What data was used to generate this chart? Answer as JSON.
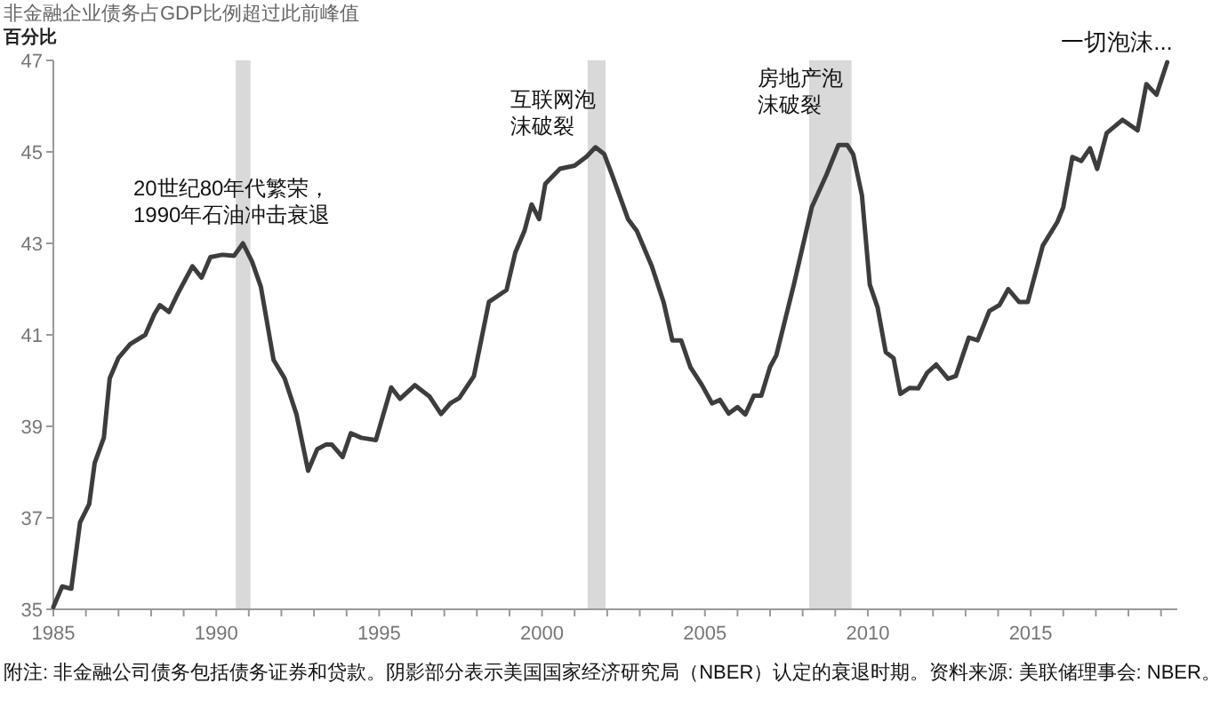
{
  "chart_data": {
    "type": "line",
    "title": "非金融企业债务占GDP比例超过此前峰值",
    "ylabel": "百分比",
    "xlim": [
      1985,
      2019.5
    ],
    "ylim": [
      35,
      47
    ],
    "xticks": [
      1985,
      {
        "value": 1986,
        "label": null
      },
      {
        "value": 1987,
        "label": null
      },
      {
        "value": 1988,
        "label": null
      },
      {
        "value": 1989,
        "label": null
      },
      1990,
      {
        "value": 1991,
        "label": null
      },
      {
        "value": 1992,
        "label": null
      },
      {
        "value": 1993,
        "label": null
      },
      {
        "value": 1994,
        "label": null
      },
      1995,
      {
        "value": 1996,
        "label": null
      },
      {
        "value": 1997,
        "label": null
      },
      {
        "value": 1998,
        "label": null
      },
      {
        "value": 1999,
        "label": null
      },
      2000,
      {
        "value": 2001,
        "label": null
      },
      {
        "value": 2002,
        "label": null
      },
      {
        "value": 2003,
        "label": null
      },
      {
        "value": 2004,
        "label": null
      },
      2005,
      {
        "value": 2006,
        "label": null
      },
      {
        "value": 2007,
        "label": null
      },
      {
        "value": 2008,
        "label": null
      },
      {
        "value": 2009,
        "label": null
      },
      2010,
      {
        "value": 2011,
        "label": null
      },
      {
        "value": 2012,
        "label": null
      },
      {
        "value": 2013,
        "label": null
      },
      {
        "value": 2014,
        "label": null
      },
      2015,
      {
        "value": 2016,
        "label": null
      },
      {
        "value": 2017,
        "label": null
      },
      {
        "value": 2018,
        "label": null
      },
      {
        "value": 2019,
        "label": null
      }
    ],
    "yticks": [
      35,
      37,
      39,
      41,
      43,
      45,
      47
    ],
    "grid": false,
    "marker": "none",
    "line_style": "solid",
    "bands": [
      {
        "axis": "x",
        "from": 1990.6,
        "to": 1991.05,
        "color": "#d9d9d9"
      },
      {
        "axis": "x",
        "from": 2001.4,
        "to": 2001.95,
        "color": "#d9d9d9"
      },
      {
        "axis": "x",
        "from": 2008.2,
        "to": 2009.5,
        "color": "#d9d9d9"
      }
    ],
    "annotations": [
      "20世纪80年代繁荣，1990年石油冲击衰退",
      "互联网泡沫破裂",
      "房地产泡沫破裂",
      "一切泡沫...",
      "附注: 非金融公司债务包括债务证券和贷款。阴影部分表示美国国家经济研究局（NBER）认定的衰退时期。资料来源: 美联储理事会: NBER。"
    ],
    "series": [
      {
        "color": "#3d3d3d",
        "x": [
          1985.0,
          1985.27,
          1985.55,
          1985.82,
          1986.1,
          1986.27,
          1986.55,
          1986.73,
          1987.0,
          1987.36,
          1987.82,
          1988.1,
          1988.27,
          1988.55,
          1988.82,
          1989.27,
          1989.55,
          1989.82,
          1990.18,
          1990.55,
          1990.82,
          1991.1,
          1991.37,
          1991.76,
          1992.1,
          1992.46,
          1992.82,
          1993.1,
          1993.36,
          1993.55,
          1993.88,
          1994.13,
          1994.45,
          1994.9,
          1995.37,
          1995.64,
          1996.1,
          1996.55,
          1996.9,
          1997.18,
          1997.46,
          1997.91,
          1998.37,
          1998.64,
          1998.91,
          1999.18,
          1999.46,
          1999.68,
          1999.91,
          2000.1,
          2000.55,
          2001.0,
          2001.37,
          2001.64,
          2001.91,
          2002.18,
          2002.64,
          2002.91,
          2003.37,
          2003.73,
          2004.0,
          2004.27,
          2004.55,
          2004.91,
          2005.22,
          2005.46,
          2005.73,
          2006.0,
          2006.24,
          2006.5,
          2006.73,
          2007.0,
          2007.19,
          2007.73,
          2008.28,
          2008.73,
          2009.1,
          2009.37,
          2009.55,
          2009.82,
          2010.06,
          2010.3,
          2010.55,
          2010.79,
          2011.0,
          2011.28,
          2011.55,
          2011.82,
          2012.1,
          2012.46,
          2012.7,
          2013.1,
          2013.37,
          2013.73,
          2014.04,
          2014.31,
          2014.64,
          2014.91,
          2015.37,
          2015.82,
          2016.0,
          2016.28,
          2016.55,
          2016.82,
          2017.04,
          2017.33,
          2017.82,
          2018.28,
          2018.55,
          2018.86,
          2019.19
        ],
        "values": [
          35.05,
          35.5,
          35.45,
          36.9,
          37.3,
          38.2,
          38.75,
          40.05,
          40.5,
          40.8,
          41.0,
          41.45,
          41.65,
          41.5,
          41.9,
          42.5,
          42.25,
          42.7,
          42.75,
          42.73,
          43.0,
          42.6,
          42.05,
          40.45,
          40.05,
          39.27,
          38.03,
          38.5,
          38.6,
          38.6,
          38.33,
          38.85,
          38.75,
          38.7,
          39.85,
          39.6,
          39.9,
          39.65,
          39.27,
          39.5,
          39.62,
          40.1,
          41.72,
          41.85,
          41.98,
          42.8,
          43.27,
          43.85,
          43.53,
          44.3,
          44.63,
          44.7,
          44.9,
          45.1,
          44.95,
          44.44,
          43.53,
          43.27,
          42.5,
          41.72,
          40.88,
          40.88,
          40.3,
          39.9,
          39.5,
          39.58,
          39.28,
          39.42,
          39.26,
          39.67,
          39.67,
          40.3,
          40.55,
          42.1,
          43.79,
          44.5,
          45.15,
          45.15,
          44.95,
          44.05,
          42.1,
          41.6,
          40.62,
          40.49,
          39.71,
          39.84,
          39.83,
          40.17,
          40.35,
          40.04,
          40.1,
          40.94,
          40.88,
          41.52,
          41.65,
          42.0,
          41.72,
          41.72,
          42.95,
          43.47,
          43.79,
          44.89,
          44.8,
          45.08,
          44.63,
          45.41,
          45.7,
          45.47,
          46.48,
          46.25,
          46.96
        ]
      }
    ]
  }
}
